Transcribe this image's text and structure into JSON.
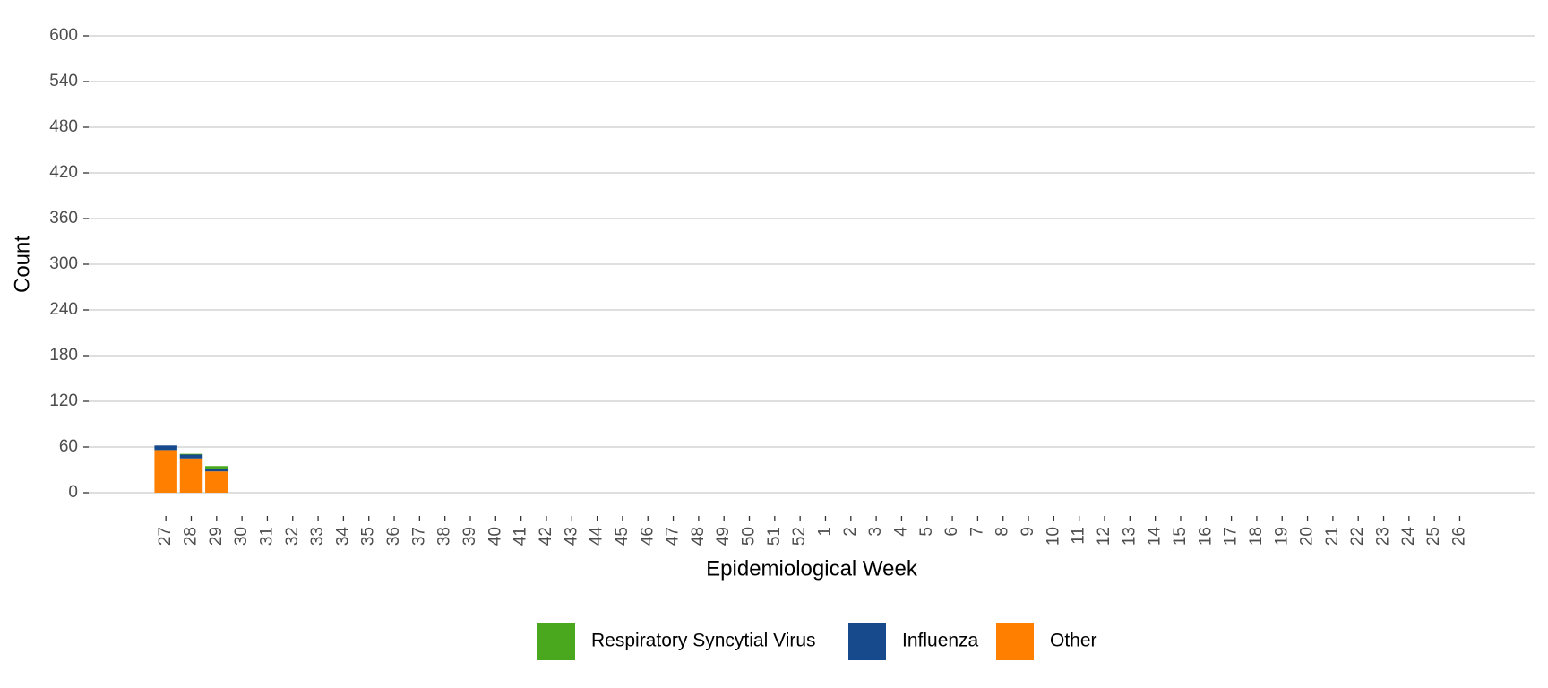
{
  "chart_data": {
    "type": "stacked_bar",
    "x_label": "Epidemiological Week",
    "y_label": "Count",
    "categories": [
      "27",
      "28",
      "29",
      "30",
      "31",
      "32",
      "33",
      "34",
      "35",
      "36",
      "37",
      "38",
      "39",
      "40",
      "41",
      "42",
      "43",
      "44",
      "45",
      "46",
      "47",
      "48",
      "49",
      "50",
      "51",
      "52",
      "1",
      "2",
      "3",
      "4",
      "5",
      "6",
      "7",
      "8",
      "9",
      "10",
      "11",
      "12",
      "13",
      "14",
      "15",
      "16",
      "17",
      "18",
      "19",
      "20",
      "21",
      "22",
      "23",
      "24",
      "25",
      "26"
    ],
    "series": [
      {
        "name": "Other",
        "color": "#ff8000",
        "values": [
          56,
          45,
          28,
          null,
          null,
          null,
          null,
          null,
          null,
          null,
          null,
          null,
          null,
          null,
          null,
          null,
          null,
          null,
          null,
          null,
          null,
          null,
          null,
          null,
          null,
          null,
          null,
          null,
          null,
          null,
          null,
          null,
          null,
          null,
          null,
          null,
          null,
          null,
          null,
          null,
          null,
          null,
          null,
          null,
          null,
          null,
          null,
          null,
          null,
          null,
          null,
          null
        ]
      },
      {
        "name": "Influenza",
        "color": "#164a8c",
        "values": [
          6,
          5,
          3,
          null,
          null,
          null,
          null,
          null,
          null,
          null,
          null,
          null,
          null,
          null,
          null,
          null,
          null,
          null,
          null,
          null,
          null,
          null,
          null,
          null,
          null,
          null,
          null,
          null,
          null,
          null,
          null,
          null,
          null,
          null,
          null,
          null,
          null,
          null,
          null,
          null,
          null,
          null,
          null,
          null,
          null,
          null,
          null,
          null,
          null,
          null,
          null,
          null
        ]
      },
      {
        "name": "Respiratory Syncytial Virus",
        "color": "#4aa81e",
        "values": [
          0,
          1,
          4,
          null,
          null,
          null,
          null,
          null,
          null,
          null,
          null,
          null,
          null,
          null,
          null,
          null,
          null,
          null,
          null,
          null,
          null,
          null,
          null,
          null,
          null,
          null,
          null,
          null,
          null,
          null,
          null,
          null,
          null,
          null,
          null,
          null,
          null,
          null,
          null,
          null,
          null,
          null,
          null,
          null,
          null,
          null,
          null,
          null,
          null,
          null,
          null,
          null
        ]
      }
    ],
    "legend_order": [
      2,
      1,
      0
    ],
    "ylim": [
      0,
      600
    ],
    "yticks": [
      0,
      60,
      120,
      180,
      240,
      300,
      360,
      420,
      480,
      540,
      600
    ],
    "grid": true,
    "legend_position": "bottom"
  }
}
